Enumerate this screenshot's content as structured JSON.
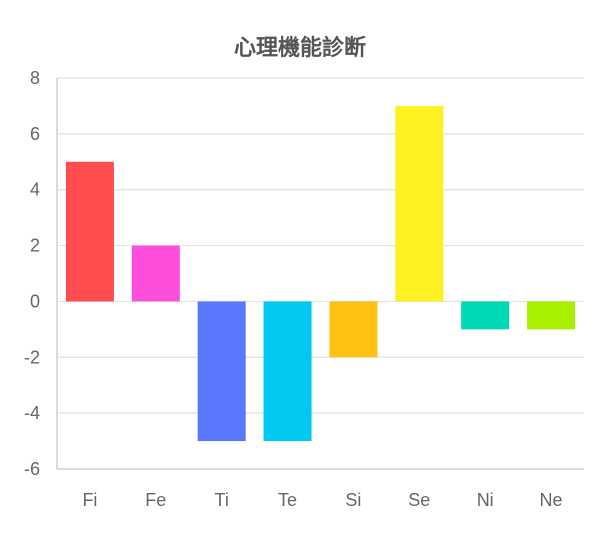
{
  "chart_data": {
    "type": "bar",
    "title": "心理機能診断",
    "categories": [
      "Fi",
      "Fe",
      "Ti",
      "Te",
      "Si",
      "Se",
      "Ni",
      "Ne"
    ],
    "values": [
      5,
      2,
      -5,
      -5,
      -2,
      7,
      -1,
      -1
    ],
    "colors": [
      "#ff4d4f",
      "#ff4ddb",
      "#5a78ff",
      "#00c8f0",
      "#ffc212",
      "#fff022",
      "#00d9b5",
      "#a8f000"
    ],
    "ylim": [
      -6,
      8
    ],
    "yticks": [
      8,
      6,
      4,
      2,
      0,
      -2,
      -4,
      -6
    ],
    "grid": true,
    "legend": "none"
  }
}
